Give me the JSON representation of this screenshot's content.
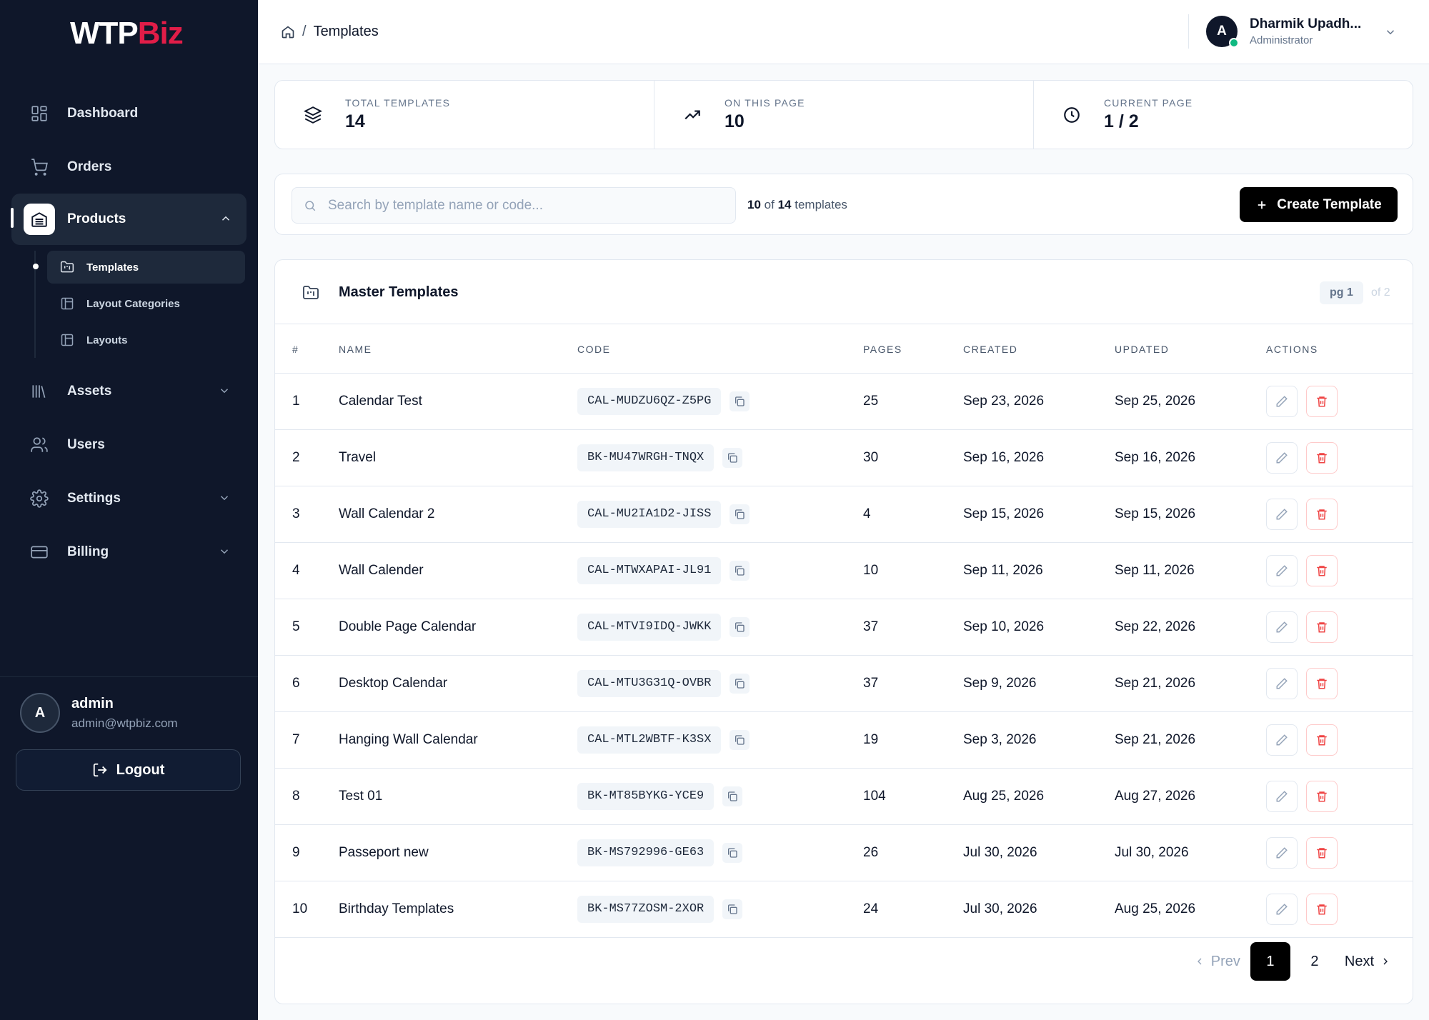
{
  "brand": {
    "logo_part1": "WTP",
    "logo_part2": "Biz",
    "accent": "#e11d48"
  },
  "sidebar": {
    "nav": [
      {
        "label": "Dashboard",
        "icon": "dashboard-icon"
      },
      {
        "label": "Orders",
        "icon": "cart-icon"
      },
      {
        "label": "Products",
        "icon": "products-icon",
        "expanded": true
      },
      {
        "label": "Assets",
        "icon": "library-icon"
      },
      {
        "label": "Users",
        "icon": "users-icon"
      },
      {
        "label": "Settings",
        "icon": "gear-icon"
      },
      {
        "label": "Billing",
        "icon": "credit-card-icon"
      }
    ],
    "products_sub": [
      {
        "label": "Templates",
        "active": true
      },
      {
        "label": "Layout Categories"
      },
      {
        "label": "Layouts"
      }
    ],
    "user": {
      "initial": "A",
      "name": "admin",
      "email": "admin@wtpbiz.com"
    },
    "logout_label": "Logout"
  },
  "topbar": {
    "breadcrumb_sep": "/",
    "breadcrumb_current": "Templates",
    "profile": {
      "initial": "A",
      "name": "Dharmik Upadh...",
      "role": "Administrator",
      "status_color": "#10b981"
    }
  },
  "stats": [
    {
      "label": "TOTAL TEMPLATES",
      "value": "14",
      "icon": "layers-icon"
    },
    {
      "label": "ON THIS PAGE",
      "value": "10",
      "icon": "trending-up-icon"
    },
    {
      "label": "CURRENT PAGE",
      "value": "1 / 2",
      "icon": "clock-icon"
    }
  ],
  "toolbar": {
    "search_placeholder": "Search by template name or code...",
    "search_value": "",
    "count_shown": "10",
    "count_of": "of",
    "count_total": "14",
    "count_suffix": "templates",
    "create_label": "Create Template"
  },
  "table": {
    "title": "Master Templates",
    "page_badge": "pg 1",
    "page_of": "of 2",
    "columns": [
      "#",
      "NAME",
      "CODE",
      "PAGES",
      "CREATED",
      "UPDATED",
      "ACTIONS"
    ],
    "rows": [
      {
        "num": "1",
        "name": "Calendar Test",
        "code": "CAL-MUDZU6QZ-Z5PG",
        "pages": "25",
        "created": "Sep 23, 2026",
        "updated": "Sep 25, 2026"
      },
      {
        "num": "2",
        "name": "Travel",
        "code": "BK-MU47WRGH-TNQX",
        "pages": "30",
        "created": "Sep 16, 2026",
        "updated": "Sep 16, 2026"
      },
      {
        "num": "3",
        "name": "Wall Calendar 2",
        "code": "CAL-MU2IA1D2-JISS",
        "pages": "4",
        "created": "Sep 15, 2026",
        "updated": "Sep 15, 2026"
      },
      {
        "num": "4",
        "name": "Wall Calender",
        "code": "CAL-MTWXAPAI-JL91",
        "pages": "10",
        "created": "Sep 11, 2026",
        "updated": "Sep 11, 2026"
      },
      {
        "num": "5",
        "name": "Double Page Calendar",
        "code": "CAL-MTVI9IDQ-JWKK",
        "pages": "37",
        "created": "Sep 10, 2026",
        "updated": "Sep 22, 2026"
      },
      {
        "num": "6",
        "name": "Desktop Calendar",
        "code": "CAL-MTU3G31Q-OVBR",
        "pages": "37",
        "created": "Sep 9, 2026",
        "updated": "Sep 21, 2026"
      },
      {
        "num": "7",
        "name": "Hanging Wall Calendar",
        "code": "CAL-MTL2WBTF-K3SX",
        "pages": "19",
        "created": "Sep 3, 2026",
        "updated": "Sep 21, 2026"
      },
      {
        "num": "8",
        "name": "Test 01",
        "code": "BK-MT85BYKG-YCE9",
        "pages": "104",
        "created": "Aug 25, 2026",
        "updated": "Aug 27, 2026"
      },
      {
        "num": "9",
        "name": "Passeport new",
        "code": "BK-MS792996-GE63",
        "pages": "26",
        "created": "Jul 30, 2026",
        "updated": "Jul 30, 2026"
      },
      {
        "num": "10",
        "name": "Birthday Templates",
        "code": "BK-MS77ZOSM-2XOR",
        "pages": "24",
        "created": "Jul 30, 2026",
        "updated": "Aug 25, 2026"
      }
    ]
  },
  "pagination": {
    "prev_label": "Prev",
    "pages": [
      "1",
      "2"
    ],
    "current": "1",
    "next_label": "Next"
  }
}
